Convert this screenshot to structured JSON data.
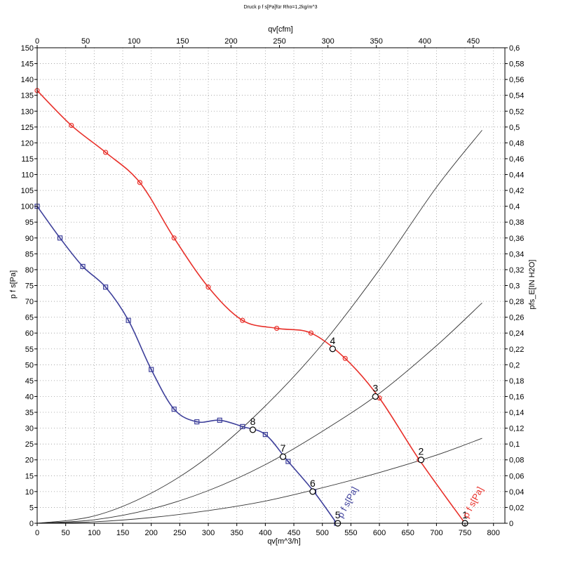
{
  "chart_data": {
    "type": "line",
    "title": "Druck p f s[Pa]für Rho=1,2kg/m^3",
    "xlabel": "qv[m^3/h]",
    "ylabel": "p f s[Pa]",
    "x2label": "qv[cfm]",
    "y2label": "pfs_E[IN H2O]",
    "xlim": [
      0,
      820
    ],
    "ylim": [
      0,
      150
    ],
    "x2lim": [
      0,
      482.6
    ],
    "y2lim": [
      0,
      0.6
    ],
    "grid": true,
    "x_ticks": [
      "0",
      "50",
      "100",
      "150",
      "200",
      "250",
      "300",
      "350",
      "400",
      "450",
      "500",
      "550",
      "600",
      "650",
      "700",
      "750",
      "800"
    ],
    "y_ticks": [
      "0",
      "5",
      "10",
      "15",
      "20",
      "25",
      "30",
      "35",
      "40",
      "45",
      "50",
      "55",
      "60",
      "65",
      "70",
      "75",
      "80",
      "85",
      "90",
      "95",
      "100",
      "105",
      "110",
      "115",
      "120",
      "125",
      "130",
      "135",
      "140",
      "145",
      "150"
    ],
    "x2_ticks": [
      "0",
      "50",
      "100",
      "150",
      "200",
      "250",
      "300",
      "350",
      "400",
      "450"
    ],
    "y2_ticks": [
      "0",
      "0,02",
      "0,04",
      "0,06",
      "0,08",
      "0,1",
      "0,12",
      "0,14",
      "0,16",
      "0,18",
      "0,2",
      "0,22",
      "0,24",
      "0,26",
      "0,28",
      "0,3",
      "0,32",
      "0,34",
      "0,36",
      "0,38",
      "0,4",
      "0,42",
      "0,44",
      "0,46",
      "0,48",
      "0,5",
      "0,52",
      "0,54",
      "0,56",
      "0,58",
      "0,6"
    ],
    "series": [
      {
        "name": "p f s[Pa]",
        "color": "#e8302a",
        "marker": "circle",
        "x": [
          0,
          60,
          120,
          180,
          240,
          300,
          360,
          420,
          480,
          540,
          600,
          670,
          750
        ],
        "y": [
          136.5,
          125.5,
          117,
          107.5,
          90,
          74.5,
          64,
          61.5,
          60,
          52,
          39.5,
          20,
          0
        ]
      },
      {
        "name": "p f s[Pa]",
        "color": "#3d3f9a",
        "marker": "square",
        "x": [
          0,
          40,
          80,
          120,
          160,
          200,
          240,
          280,
          320,
          360,
          400,
          440,
          485,
          525
        ],
        "y": [
          100,
          90,
          81,
          74.5,
          64,
          48.5,
          36,
          32,
          32.5,
          30.5,
          28,
          19.5,
          10,
          0
        ]
      }
    ],
    "system_curves": [
      {
        "color": "#333333",
        "x": [
          0,
          100,
          200,
          300,
          400,
          500,
          600,
          700,
          780
        ],
        "y": [
          0,
          0.45,
          1.8,
          4,
          7,
          11.2,
          16,
          21.5,
          26.8
        ]
      },
      {
        "color": "#333333",
        "x": [
          0,
          100,
          200,
          300,
          400,
          500,
          600,
          700,
          780
        ],
        "y": [
          0,
          1.1,
          4.5,
          10.3,
          18.5,
          29,
          41,
          56,
          69.5
        ]
      },
      {
        "color": "#333333",
        "x": [
          0,
          100,
          200,
          300,
          400,
          500,
          600,
          700,
          780
        ],
        "y": [
          0,
          2.3,
          9.5,
          21,
          37,
          56.5,
          80,
          106,
          124
        ]
      }
    ],
    "operating_points": [
      {
        "label": "1",
        "x": 750,
        "y": 0
      },
      {
        "label": "2",
        "x": 673,
        "y": 20
      },
      {
        "label": "3",
        "x": 593,
        "y": 40
      },
      {
        "label": "4",
        "x": 518,
        "y": 55
      },
      {
        "label": "5",
        "x": 527,
        "y": 0
      },
      {
        "label": "6",
        "x": 483,
        "y": 10
      },
      {
        "label": "7",
        "x": 431,
        "y": 21
      },
      {
        "label": "8",
        "x": 378,
        "y": 29.5
      }
    ],
    "inline_labels": [
      {
        "text": "p f s[Pa]",
        "x": 755,
        "y": 1.5,
        "color": "#e8302a"
      },
      {
        "text": "p f s[Pa]",
        "x": 535,
        "y": 1.5,
        "color": "#3d3f9a"
      }
    ]
  }
}
